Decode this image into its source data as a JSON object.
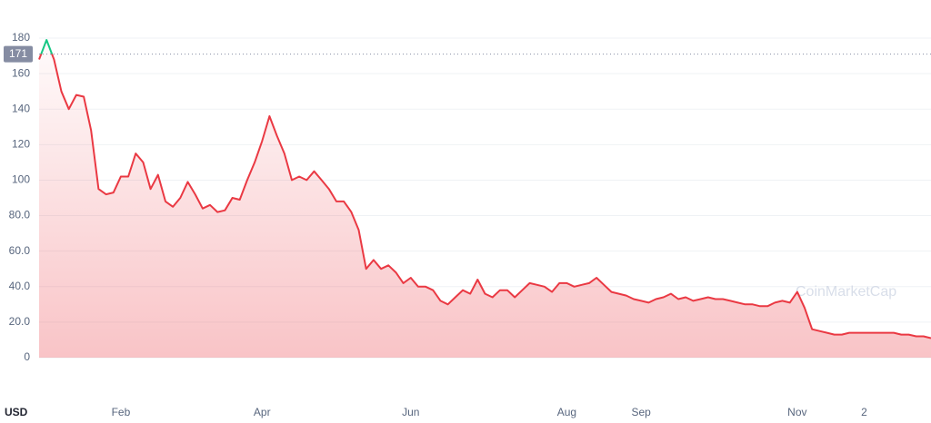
{
  "chart_data": {
    "type": "line",
    "currency": "USD",
    "watermark": "CoinMarketCap",
    "categories": [
      null,
      null,
      null,
      null,
      null,
      null,
      null,
      null,
      null,
      null,
      null,
      "Feb",
      null,
      null,
      null,
      null,
      null,
      null,
      null,
      null,
      null,
      null,
      null,
      null,
      null,
      null,
      null,
      null,
      null,
      null,
      "Apr",
      null,
      null,
      null,
      null,
      null,
      null,
      null,
      null,
      null,
      null,
      null,
      null,
      null,
      null,
      null,
      null,
      null,
      null,
      null,
      "Jun",
      null,
      null,
      null,
      null,
      null,
      null,
      null,
      null,
      null,
      null,
      null,
      null,
      null,
      null,
      null,
      null,
      null,
      null,
      null,
      null,
      "Aug",
      null,
      null,
      null,
      null,
      null,
      null,
      null,
      null,
      null,
      "Sep",
      null,
      null,
      null,
      null,
      null,
      null,
      null,
      null,
      null,
      null,
      null,
      null,
      null,
      null,
      null,
      null,
      null,
      null,
      null,
      null,
      "Nov",
      null,
      null,
      null,
      null,
      null,
      null,
      null,
      null,
      "2",
      null,
      null,
      null,
      null,
      null,
      null,
      null,
      null,
      null
    ],
    "values": [
      168,
      179,
      168,
      150,
      140,
      148,
      147,
      128,
      95,
      92,
      93,
      102,
      102,
      115,
      110,
      95,
      103,
      88,
      85,
      90,
      99,
      92,
      84,
      86,
      82,
      83,
      90,
      89,
      100,
      110,
      122,
      136,
      125,
      115,
      100,
      102,
      100,
      105,
      100,
      95,
      88,
      88,
      82,
      72,
      50,
      55,
      50,
      52,
      48,
      42,
      45,
      40,
      40,
      38,
      32,
      30,
      34,
      38,
      36,
      44,
      36,
      34,
      38,
      38,
      34,
      38,
      42,
      41,
      40,
      37,
      42,
      42,
      40,
      41,
      42,
      45,
      41,
      37,
      36,
      35,
      33,
      32,
      31,
      33,
      34,
      36,
      33,
      34,
      32,
      33,
      34,
      33,
      33,
      32,
      31,
      30,
      30,
      29,
      29,
      31,
      32,
      31,
      37,
      28,
      16,
      15,
      14,
      13,
      13,
      14,
      14,
      14,
      14,
      14,
      14,
      14,
      13,
      13,
      12,
      12,
      11
    ],
    "color": "#ea3943",
    "up_color": "#16c784",
    "reference_value": 171,
    "ylim": [
      0,
      180
    ],
    "yticks": [
      0,
      {
        "value": 20,
        "label": "20.0"
      },
      {
        "value": 40,
        "label": "40.0"
      },
      {
        "value": 60,
        "label": "60.0"
      },
      {
        "value": 80,
        "label": "80.0"
      },
      100,
      120,
      140,
      160,
      180
    ],
    "grid": true
  }
}
